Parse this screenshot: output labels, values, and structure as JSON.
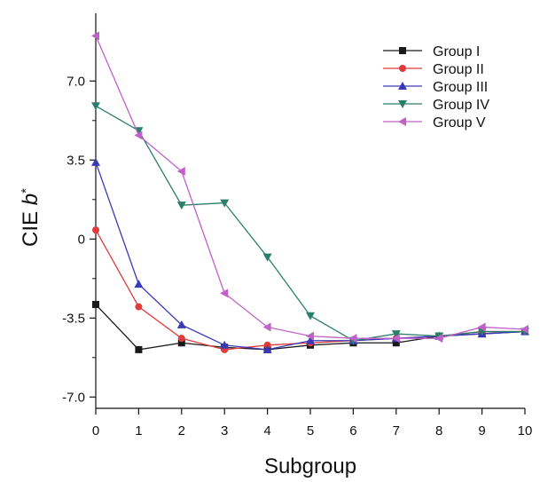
{
  "chart_data": {
    "type": "line",
    "xlabel": "Subgroup",
    "ylabel_main": "CIE ",
    "ylabel_italic": "b",
    "ylabel_sup": "*",
    "x": [
      0,
      1,
      2,
      3,
      4,
      5,
      6,
      7,
      8,
      9,
      10
    ],
    "xlim": [
      0,
      10
    ],
    "ylim": [
      -7.5,
      10
    ],
    "yticks": [
      7.0,
      3.5,
      0,
      -3.5,
      -7.0
    ],
    "ytick_labels": [
      "7.0",
      "3.5",
      "0",
      "-3.5",
      "-7.0"
    ],
    "xticks": [
      0,
      1,
      2,
      3,
      4,
      5,
      6,
      7,
      8,
      9,
      10
    ],
    "xtick_labels": [
      "0",
      "1",
      "2",
      "3",
      "4",
      "5",
      "6",
      "7",
      "8",
      "9",
      "10"
    ],
    "legend_position": "top-right",
    "grid": false,
    "series": [
      {
        "name": "Group I",
        "color": "#1a1a1a",
        "marker": "square",
        "values": [
          -2.9,
          -4.9,
          -4.6,
          -4.8,
          -4.9,
          -4.7,
          -4.6,
          -4.6,
          -4.3,
          -4.2,
          -4.1
        ]
      },
      {
        "name": "Group II",
        "color": "#e03a3a",
        "marker": "circle",
        "values": [
          0.4,
          -3.0,
          -4.4,
          -4.9,
          -4.7,
          -4.6,
          -4.5,
          -4.4,
          -4.3,
          -4.1,
          -4.1
        ]
      },
      {
        "name": "Group III",
        "color": "#3a3ab8",
        "marker": "triangle-up",
        "values": [
          3.4,
          -2.0,
          -3.8,
          -4.7,
          -4.9,
          -4.5,
          -4.5,
          -4.4,
          -4.3,
          -4.2,
          -4.1
        ]
      },
      {
        "name": "Group IV",
        "color": "#2a7f6a",
        "marker": "triangle-down",
        "values": [
          5.9,
          4.8,
          1.5,
          1.6,
          -0.8,
          -3.4,
          -4.5,
          -4.2,
          -4.3,
          -4.1,
          -4.1
        ]
      },
      {
        "name": "Group V",
        "color": "#c060c8",
        "marker": "triangle-left",
        "values": [
          9.0,
          4.6,
          3.0,
          -2.4,
          -3.9,
          -4.3,
          -4.4,
          -4.4,
          -4.4,
          -3.9,
          -4.0
        ]
      }
    ]
  }
}
